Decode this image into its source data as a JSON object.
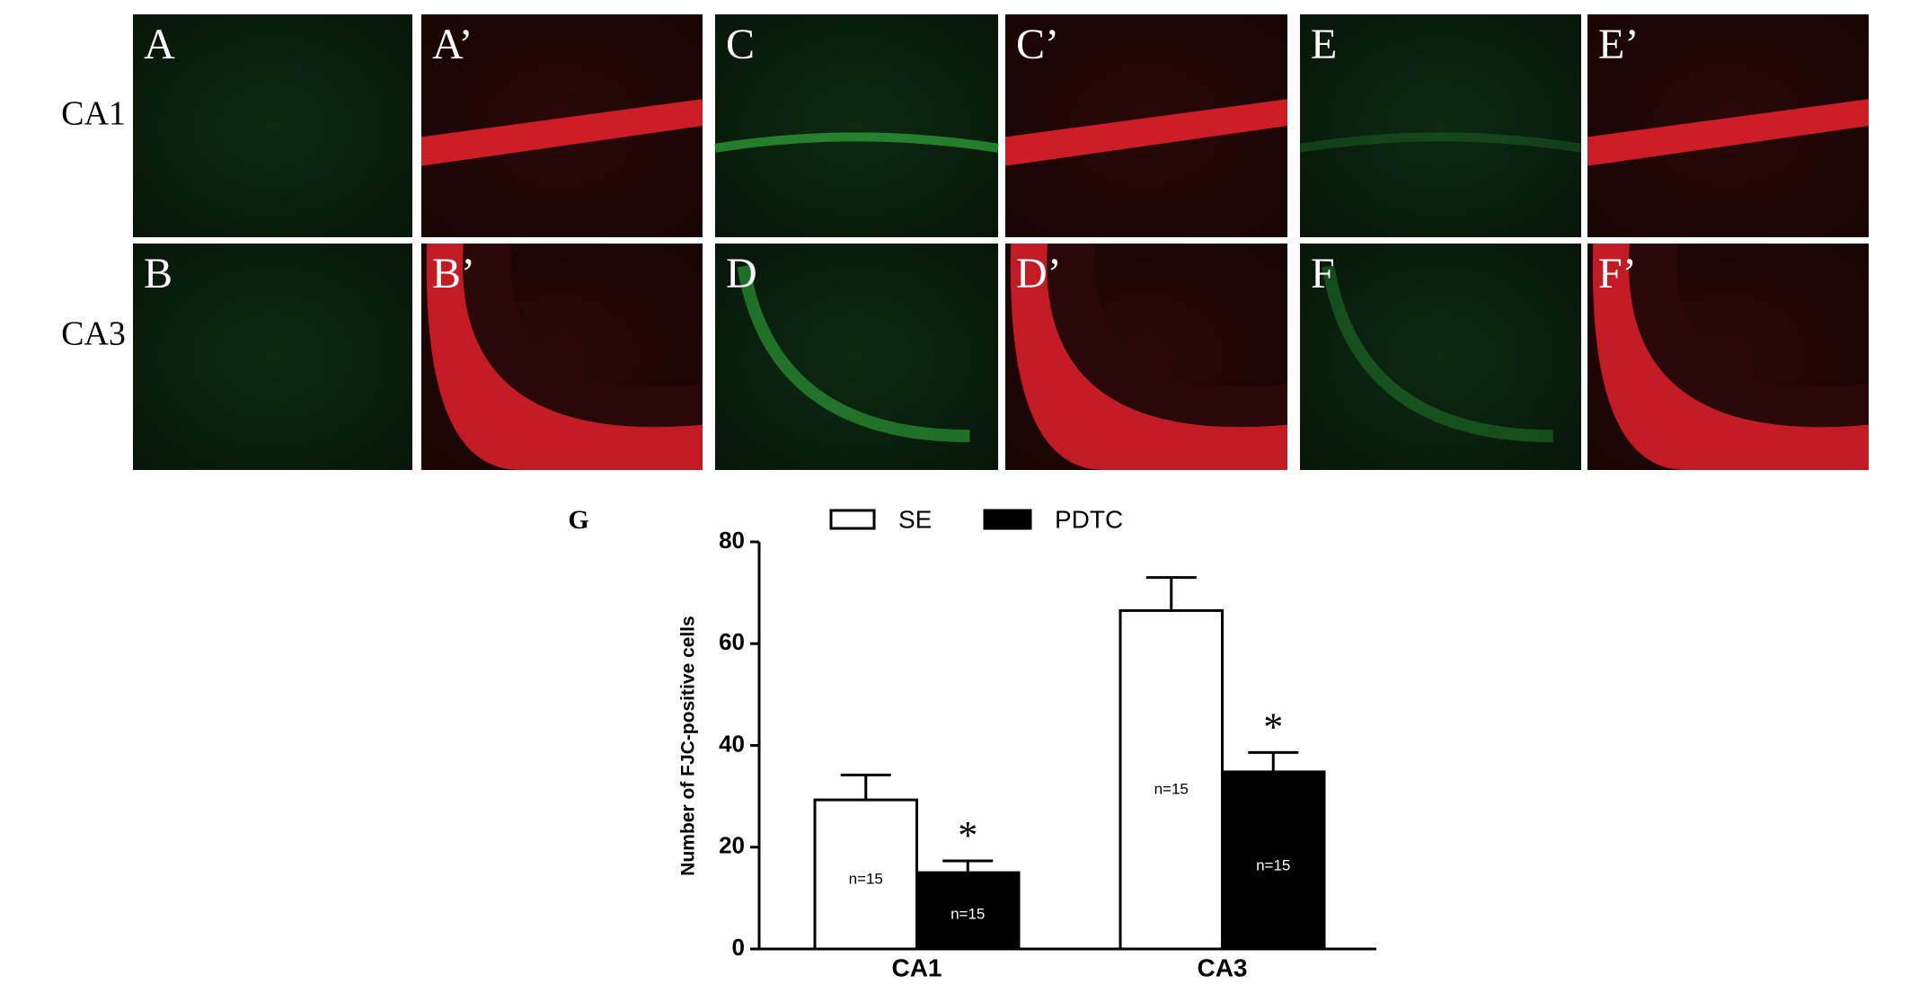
{
  "panels": {
    "row_labels": [
      "CA1",
      "CA3"
    ],
    "labels": [
      [
        "A",
        "A’",
        "C",
        "C’",
        "E",
        "E’"
      ],
      [
        "B",
        "B’",
        "D",
        "D’",
        "F",
        "F’"
      ]
    ]
  },
  "chart_data": {
    "type": "bar",
    "label": "G",
    "ylabel": "Number of FJC-positive cells",
    "categories": [
      "CA1",
      "CA3"
    ],
    "series": [
      {
        "name": "SE",
        "color": "#ffffff",
        "values": [
          29.3,
          66.5
        ],
        "errors": [
          4.9,
          6.5
        ],
        "n_labels": [
          "n=15",
          "n=15"
        ]
      },
      {
        "name": "PDTC",
        "color": "#000000",
        "values": [
          15,
          34.8
        ],
        "errors": [
          2.3,
          3.8
        ],
        "n_labels": [
          "n=15",
          "n=15"
        ],
        "significance": [
          "*",
          "*"
        ]
      }
    ],
    "ylim": [
      0,
      80
    ],
    "yticks": [
      0,
      20,
      40,
      60,
      80
    ]
  }
}
